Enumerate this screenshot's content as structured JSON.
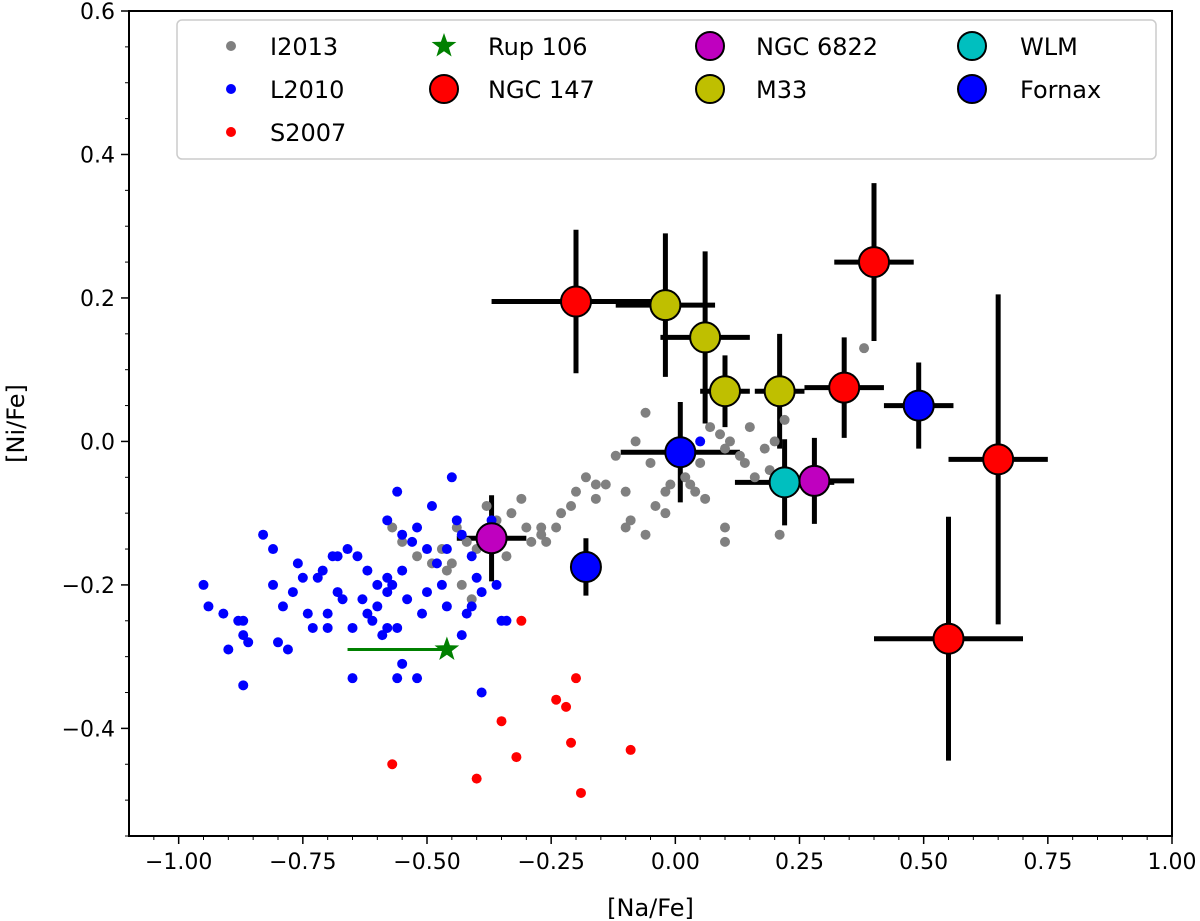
{
  "chart_data": {
    "type": "scatter",
    "title": "",
    "xlabel": "[Na/Fe]",
    "ylabel": "[Ni/Fe]",
    "xlim": [
      -1.1,
      1.0
    ],
    "ylim": [
      -0.55,
      0.6
    ],
    "xticks": [
      -1.0,
      -0.75,
      -0.5,
      -0.25,
      0.0,
      0.25,
      0.5,
      0.75,
      1.0
    ],
    "xtick_labels": [
      "−1.00",
      "−0.75",
      "−0.50",
      "−0.25",
      "0.00",
      "0.25",
      "0.50",
      "0.75",
      "1.00"
    ],
    "yticks": [
      -0.4,
      -0.2,
      0.0,
      0.2,
      0.4,
      0.6
    ],
    "ytick_labels": [
      "−0.4",
      "−0.2",
      "0.0",
      "0.2",
      "0.4",
      "0.6"
    ],
    "grid": false,
    "legend": {
      "position": "top-center",
      "columns": 4,
      "entries": [
        {
          "label": "I2013",
          "series": "I2013"
        },
        {
          "label": "L2010",
          "series": "L2010"
        },
        {
          "label": "S2007",
          "series": "S2007"
        },
        {
          "label": "Rup 106",
          "series": "Rup 106"
        },
        {
          "label": "NGC 147",
          "series": "NGC 147"
        },
        {
          "label": "NGC 6822",
          "series": "NGC 6822"
        },
        {
          "label": "M33",
          "series": "M33"
        },
        {
          "label": "WLM",
          "series": "WLM"
        },
        {
          "label": "Fornax",
          "series": "Fornax"
        }
      ]
    },
    "series": [
      {
        "name": "I2013",
        "marker": "small-dot",
        "color": "#808080",
        "points": [
          [
            -0.57,
            -0.12
          ],
          [
            -0.55,
            -0.14
          ],
          [
            -0.52,
            -0.16
          ],
          [
            -0.49,
            -0.17
          ],
          [
            -0.47,
            -0.15
          ],
          [
            -0.46,
            -0.18
          ],
          [
            -0.43,
            -0.2
          ],
          [
            -0.41,
            -0.22
          ],
          [
            -0.44,
            -0.12
          ],
          [
            -0.42,
            -0.14
          ],
          [
            -0.4,
            -0.15
          ],
          [
            -0.38,
            -0.09
          ],
          [
            -0.36,
            -0.11
          ],
          [
            -0.35,
            -0.13
          ],
          [
            -0.33,
            -0.1
          ],
          [
            -0.31,
            -0.08
          ],
          [
            -0.3,
            -0.12
          ],
          [
            -0.29,
            -0.14
          ],
          [
            -0.27,
            -0.13
          ],
          [
            -0.26,
            -0.14
          ],
          [
            -0.24,
            -0.12
          ],
          [
            -0.23,
            -0.1
          ],
          [
            -0.21,
            -0.09
          ],
          [
            -0.2,
            -0.07
          ],
          [
            -0.18,
            -0.05
          ],
          [
            -0.16,
            -0.08
          ],
          [
            -0.14,
            -0.06
          ],
          [
            -0.12,
            -0.02
          ],
          [
            -0.1,
            -0.12
          ],
          [
            -0.09,
            -0.11
          ],
          [
            -0.08,
            0.0
          ],
          [
            -0.06,
            -0.13
          ],
          [
            -0.05,
            -0.03
          ],
          [
            -0.04,
            -0.09
          ],
          [
            -0.02,
            -0.1
          ],
          [
            -0.01,
            -0.06
          ],
          [
            0.0,
            -0.02
          ],
          [
            0.02,
            -0.05
          ],
          [
            0.03,
            -0.06
          ],
          [
            0.04,
            -0.07
          ],
          [
            0.05,
            -0.03
          ],
          [
            0.06,
            -0.08
          ],
          [
            0.07,
            0.02
          ],
          [
            0.09,
            0.01
          ],
          [
            0.1,
            -0.01
          ],
          [
            0.11,
            0.0
          ],
          [
            0.13,
            -0.02
          ],
          [
            0.14,
            -0.03
          ],
          [
            0.16,
            -0.05
          ],
          [
            0.18,
            -0.01
          ],
          [
            0.19,
            -0.04
          ],
          [
            0.2,
            0.0
          ],
          [
            0.22,
            0.03
          ],
          [
            0.1,
            -0.12
          ],
          [
            0.1,
            -0.14
          ],
          [
            0.21,
            -0.13
          ],
          [
            -0.45,
            -0.17
          ],
          [
            -0.06,
            0.04
          ],
          [
            -0.1,
            -0.07
          ],
          [
            0.38,
            0.13
          ],
          [
            -0.02,
            -0.07
          ],
          [
            0.15,
            0.02
          ],
          [
            -0.16,
            -0.06
          ],
          [
            -0.27,
            -0.12
          ],
          [
            -0.34,
            -0.16
          ]
        ]
      },
      {
        "name": "L2010",
        "marker": "small-dot",
        "color": "#0000ff",
        "points": [
          [
            -0.95,
            -0.2
          ],
          [
            -0.94,
            -0.23
          ],
          [
            -0.91,
            -0.24
          ],
          [
            -0.9,
            -0.29
          ],
          [
            -0.88,
            -0.25
          ],
          [
            -0.87,
            -0.25
          ],
          [
            -0.87,
            -0.27
          ],
          [
            -0.86,
            -0.28
          ],
          [
            -0.87,
            -0.34
          ],
          [
            -0.83,
            -0.13
          ],
          [
            -0.81,
            -0.15
          ],
          [
            -0.81,
            -0.2
          ],
          [
            -0.8,
            -0.28
          ],
          [
            -0.79,
            -0.23
          ],
          [
            -0.78,
            -0.29
          ],
          [
            -0.76,
            -0.17
          ],
          [
            -0.75,
            -0.19
          ],
          [
            -0.74,
            -0.24
          ],
          [
            -0.73,
            -0.26
          ],
          [
            -0.72,
            -0.19
          ],
          [
            -0.71,
            -0.18
          ],
          [
            -0.7,
            -0.24
          ],
          [
            -0.69,
            -0.16
          ],
          [
            -0.68,
            -0.16
          ],
          [
            -0.68,
            -0.21
          ],
          [
            -0.67,
            -0.22
          ],
          [
            -0.66,
            -0.15
          ],
          [
            -0.65,
            -0.26
          ],
          [
            -0.64,
            -0.16
          ],
          [
            -0.63,
            -0.22
          ],
          [
            -0.62,
            -0.18
          ],
          [
            -0.61,
            -0.25
          ],
          [
            -0.6,
            -0.2
          ],
          [
            -0.6,
            -0.23
          ],
          [
            -0.59,
            -0.27
          ],
          [
            -0.58,
            -0.11
          ],
          [
            -0.58,
            -0.19
          ],
          [
            -0.57,
            -0.2
          ],
          [
            -0.56,
            -0.07
          ],
          [
            -0.55,
            -0.13
          ],
          [
            -0.55,
            -0.18
          ],
          [
            -0.54,
            -0.22
          ],
          [
            -0.53,
            -0.14
          ],
          [
            -0.52,
            -0.12
          ],
          [
            -0.51,
            -0.24
          ],
          [
            -0.5,
            -0.15
          ],
          [
            -0.5,
            -0.21
          ],
          [
            -0.49,
            -0.09
          ],
          [
            -0.48,
            -0.17
          ],
          [
            -0.47,
            -0.2
          ],
          [
            -0.46,
            -0.23
          ],
          [
            -0.45,
            -0.05
          ],
          [
            -0.44,
            -0.11
          ],
          [
            -0.43,
            -0.13
          ],
          [
            -0.42,
            -0.24
          ],
          [
            -0.41,
            -0.16
          ],
          [
            -0.41,
            -0.23
          ],
          [
            -0.4,
            -0.19
          ],
          [
            -0.39,
            -0.21
          ],
          [
            -0.38,
            -0.14
          ],
          [
            -0.37,
            -0.11
          ],
          [
            -0.36,
            -0.2
          ],
          [
            -0.35,
            -0.25
          ],
          [
            -0.56,
            -0.33
          ],
          [
            -0.55,
            -0.31
          ],
          [
            -0.52,
            -0.33
          ],
          [
            -0.65,
            -0.33
          ],
          [
            -0.58,
            -0.26
          ],
          [
            -0.39,
            -0.35
          ],
          [
            -0.34,
            -0.25
          ],
          [
            -0.46,
            -0.15
          ],
          [
            -0.58,
            -0.21
          ],
          [
            -0.62,
            -0.24
          ],
          [
            -0.7,
            -0.26
          ],
          [
            -0.77,
            -0.21
          ],
          [
            0.05,
            0.0
          ],
          [
            -0.56,
            -0.26
          ],
          [
            -0.43,
            -0.27
          ]
        ]
      },
      {
        "name": "S2007",
        "marker": "small-dot",
        "color": "#ff0000",
        "points": [
          [
            -0.31,
            -0.25
          ],
          [
            -0.57,
            -0.45
          ],
          [
            -0.4,
            -0.47
          ],
          [
            -0.35,
            -0.39
          ],
          [
            -0.32,
            -0.44
          ],
          [
            -0.24,
            -0.36
          ],
          [
            -0.22,
            -0.37
          ],
          [
            -0.21,
            -0.42
          ],
          [
            -0.2,
            -0.33
          ],
          [
            -0.19,
            -0.49
          ],
          [
            -0.09,
            -0.43
          ]
        ]
      },
      {
        "name": "Rup 106",
        "marker": "star",
        "color": "#008000",
        "points": [
          [
            -0.46,
            -0.29
          ]
        ],
        "xerr": [
          [
            0.2,
            0.0
          ]
        ],
        "yerr": [
          [
            0.0,
            0.0
          ]
        ]
      },
      {
        "name": "NGC 147",
        "marker": "large-circle",
        "color": "#ff0000",
        "points": [
          [
            -0.2,
            0.195
          ],
          [
            0.4,
            0.25
          ],
          [
            0.34,
            0.075
          ],
          [
            0.65,
            -0.025
          ],
          [
            0.55,
            -0.275
          ]
        ],
        "xerr": [
          [
            0.17,
            0.17
          ],
          [
            0.08,
            0.08
          ],
          [
            0.08,
            0.08
          ],
          [
            0.1,
            0.1
          ],
          [
            0.15,
            0.15
          ]
        ],
        "yerr": [
          [
            0.1,
            0.1
          ],
          [
            0.11,
            0.11
          ],
          [
            0.07,
            0.07
          ],
          [
            0.23,
            0.23
          ],
          [
            0.17,
            0.17
          ]
        ]
      },
      {
        "name": "NGC 6822",
        "marker": "large-circle",
        "color": "#bf00bf",
        "points": [
          [
            -0.37,
            -0.135
          ],
          [
            0.28,
            -0.055
          ]
        ],
        "xerr": [
          [
            0.07,
            0.07
          ],
          [
            0.08,
            0.08
          ]
        ],
        "yerr": [
          [
            0.06,
            0.06
          ],
          [
            0.06,
            0.06
          ]
        ]
      },
      {
        "name": "M33",
        "marker": "large-circle",
        "color": "#bfbf00",
        "points": [
          [
            -0.02,
            0.19
          ],
          [
            0.06,
            0.145
          ],
          [
            0.1,
            0.07
          ],
          [
            0.21,
            0.07
          ]
        ],
        "xerr": [
          [
            0.1,
            0.1
          ],
          [
            0.09,
            0.09
          ],
          [
            0.05,
            0.05
          ],
          [
            0.05,
            0.05
          ]
        ],
        "yerr": [
          [
            0.1,
            0.1
          ],
          [
            0.12,
            0.12
          ],
          [
            0.05,
            0.05
          ],
          [
            0.08,
            0.08
          ]
        ]
      },
      {
        "name": "WLM",
        "marker": "large-circle",
        "color": "#00bfbf",
        "points": [
          [
            0.22,
            -0.057
          ]
        ],
        "xerr": [
          [
            0.1,
            0.1
          ]
        ],
        "yerr": [
          [
            0.06,
            0.06
          ]
        ]
      },
      {
        "name": "Fornax",
        "marker": "large-circle",
        "color": "#0000ff",
        "points": [
          [
            0.01,
            -0.015
          ],
          [
            -0.18,
            -0.175
          ],
          [
            0.49,
            0.05
          ]
        ],
        "xerr": [
          [
            0.12,
            0.12
          ],
          [
            0.03,
            0.03
          ],
          [
            0.07,
            0.07
          ]
        ],
        "yerr": [
          [
            0.07,
            0.07
          ],
          [
            0.04,
            0.04
          ],
          [
            0.06,
            0.06
          ]
        ]
      }
    ]
  }
}
